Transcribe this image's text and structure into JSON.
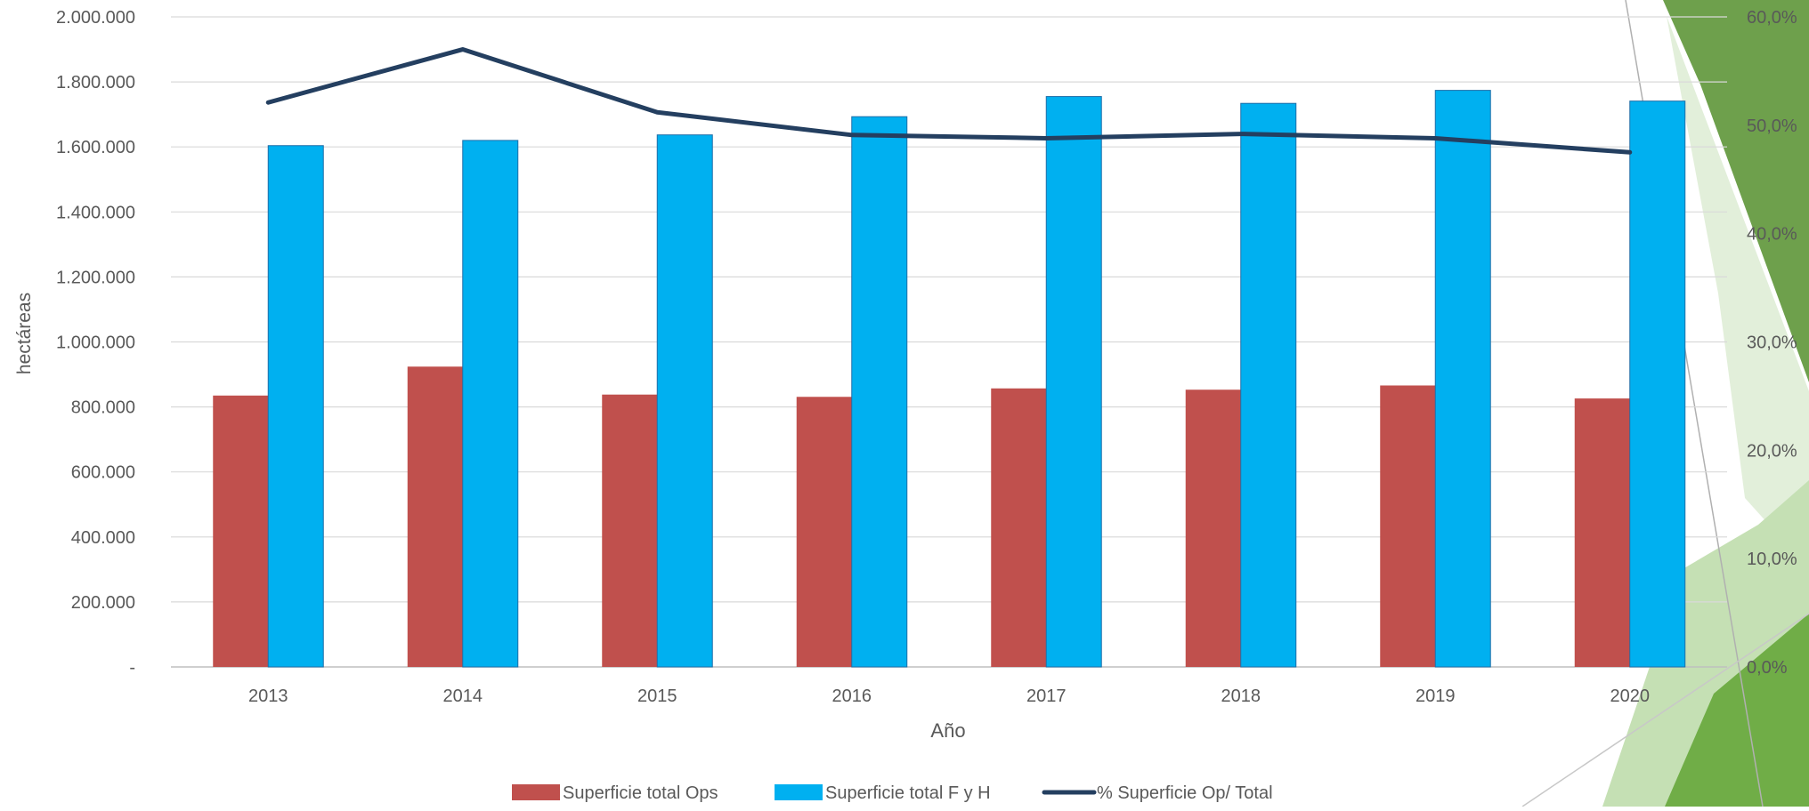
{
  "chart_data": {
    "type": "bar",
    "categories": [
      "2013",
      "2014",
      "2015",
      "2016",
      "2017",
      "2018",
      "2019",
      "2020"
    ],
    "series": [
      {
        "name": "Superficie total Ops",
        "type": "bar",
        "axis": "left",
        "color": "#C0504D",
        "values": [
          835000,
          924000,
          838000,
          831000,
          857000,
          853000,
          866000,
          826000
        ]
      },
      {
        "name": "Superficie total F y H",
        "type": "bar",
        "axis": "left",
        "color": "#00B0F0",
        "values": [
          1604000,
          1620000,
          1637000,
          1693000,
          1755000,
          1734000,
          1774000,
          1741000
        ]
      },
      {
        "name": "% Superficie Op/ Total",
        "type": "line",
        "axis": "right",
        "color": "#243F60",
        "values": [
          52.1,
          57.0,
          51.2,
          49.1,
          48.8,
          49.2,
          48.8,
          47.5
        ]
      }
    ],
    "xlabel": "Año",
    "ylabel": "hectáreas",
    "ylim": [
      0,
      2000000
    ],
    "y_ticks": [
      "-",
      "200.000",
      "400.000",
      "600.000",
      "800.000",
      "1.000.000",
      "1.200.000",
      "1.400.000",
      "1.600.000",
      "1.800.000",
      "2.000.000"
    ],
    "y2lim": [
      0,
      60
    ],
    "y2_ticks": [
      "0,0%",
      "10,0%",
      "20,0%",
      "30,0%",
      "40,0%",
      "50,0%",
      "60,0%"
    ],
    "grid": true,
    "legend_position": "bottom"
  },
  "theme": {
    "grid_color": "#D9D9D9",
    "text_color": "#595959",
    "decor_dark_green": "#5E9638",
    "decor_mid_green": "#70AD47",
    "decor_light_green": "#C5E0B4",
    "decor_pale_green": "#E2EFDA"
  }
}
